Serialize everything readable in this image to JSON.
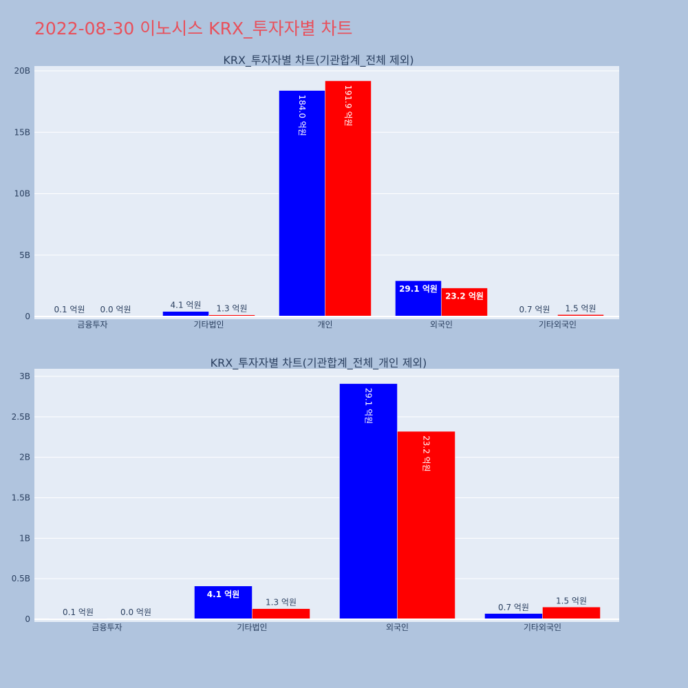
{
  "page": {
    "title": "2022-08-30 이노시스 KRX_투자자별 차트"
  },
  "colors": {
    "background": "#b0c4de",
    "plot_bg": "#e5ecf6",
    "title": "#e8505b",
    "series_buy": "#0000ff",
    "series_sell": "#ff0000",
    "text": "#2a3f5f"
  },
  "chart_data": [
    {
      "type": "bar",
      "title": "KRX_투자자별 차트(기관합계_전체 제외)",
      "categories": [
        "금융투자",
        "기타법인",
        "개인",
        "외국인",
        "기타외국인"
      ],
      "series": [
        {
          "color": "#0000ff",
          "values": [
            0.01,
            0.41,
            18.4,
            2.91,
            0.07
          ],
          "labels": [
            "0.1 억원",
            "4.1 억원",
            "184.0 억원",
            "29.1 억원",
            "0.7 억원"
          ]
        },
        {
          "color": "#ff0000",
          "values": [
            0.0,
            0.13,
            19.19,
            2.32,
            0.15
          ],
          "labels": [
            "0.0 억원",
            "1.3 억원",
            "191.9 억원",
            "23.2 억원",
            "1.5 억원"
          ]
        }
      ],
      "unit": "B",
      "ylim": [
        0,
        20
      ],
      "yticks": [
        0,
        5,
        10,
        15,
        20
      ],
      "ytick_labels": [
        "0",
        "5B",
        "10B",
        "15B",
        "20B"
      ],
      "grid": true
    },
    {
      "type": "bar",
      "title": "KRX_투자자별 차트(기관합계_전체_개인 제외)",
      "categories": [
        "금융투자",
        "기타법인",
        "외국인",
        "기타외국인"
      ],
      "series": [
        {
          "color": "#0000ff",
          "values": [
            0.01,
            0.41,
            2.91,
            0.07
          ],
          "labels": [
            "0.1 억원",
            "4.1 억원",
            "29.1 억원",
            "0.7 억원"
          ]
        },
        {
          "color": "#ff0000",
          "values": [
            0.0,
            0.13,
            2.32,
            0.15
          ],
          "labels": [
            "0.0 억원",
            "1.3 억원",
            "23.2 억원",
            "1.5 억원"
          ]
        }
      ],
      "unit": "B",
      "ylim": [
        0,
        3
      ],
      "yticks": [
        0,
        0.5,
        1,
        1.5,
        2,
        2.5,
        3
      ],
      "ytick_labels": [
        "0",
        "0.5B",
        "1B",
        "1.5B",
        "2B",
        "2.5B",
        "3B"
      ],
      "grid": true
    }
  ]
}
